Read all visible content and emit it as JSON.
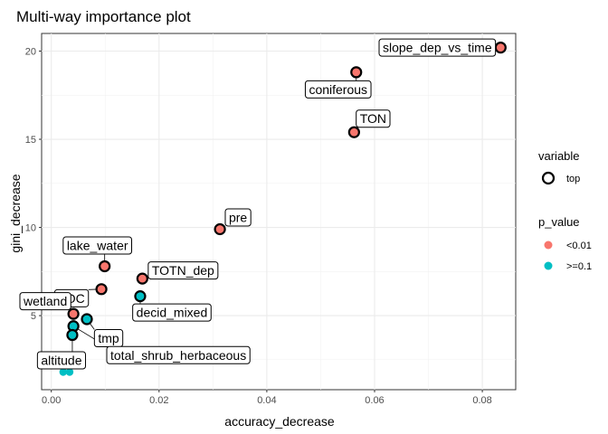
{
  "chart_data": {
    "type": "scatter",
    "title": "Multi-way importance plot",
    "xlabel": "accuracy_decrease",
    "ylabel": "gini_decrease",
    "xlim": [
      -0.0018,
      0.0862
    ],
    "ylim": [
      0.8,
      21.0
    ],
    "x_ticks": [
      "0.00",
      "0.02",
      "0.04",
      "0.06",
      "0.08"
    ],
    "x_tick_values": [
      0.0,
      0.02,
      0.04,
      0.06,
      0.08
    ],
    "y_ticks": [
      "5",
      "10",
      "15",
      "20"
    ],
    "y_tick_values": [
      5,
      10,
      15,
      20
    ],
    "grid": true,
    "legend_position": "right",
    "colors": {
      "lt001": "#F8766D",
      "ge01": "#00BFC4"
    },
    "points": [
      {
        "label": "slope_dep_vs_time",
        "x": 0.0834,
        "y": 20.2,
        "p": "<0.01",
        "top": true
      },
      {
        "label": "coniferous",
        "x": 0.0566,
        "y": 18.8,
        "p": "<0.01",
        "top": true
      },
      {
        "label": "TON",
        "x": 0.0562,
        "y": 15.4,
        "p": "<0.01",
        "top": true
      },
      {
        "label": "pre",
        "x": 0.0313,
        "y": 9.9,
        "p": "<0.01",
        "top": true
      },
      {
        "label": "lake_water",
        "x": 0.0099,
        "y": 7.8,
        "p": "<0.01",
        "top": true
      },
      {
        "label": "TOTN_dep",
        "x": 0.0169,
        "y": 7.1,
        "p": "<0.01",
        "top": true
      },
      {
        "label": "TOC",
        "x": 0.0093,
        "y": 6.5,
        "p": "<0.01",
        "top": true
      },
      {
        "label": "decid_mixed",
        "x": 0.0165,
        "y": 6.1,
        "p": ">=0.1",
        "top": true
      },
      {
        "label": "wetland",
        "x": 0.0041,
        "y": 5.1,
        "p": "<0.01",
        "top": true
      },
      {
        "label": "tmp",
        "x": 0.0066,
        "y": 4.8,
        "p": ">=0.1",
        "top": true
      },
      {
        "label": "total_shrub_herbaceous",
        "x": 0.0041,
        "y": 4.4,
        "p": ">=0.1",
        "top": true
      },
      {
        "label": "altitude",
        "x": 0.0039,
        "y": 3.9,
        "p": ">=0.1",
        "top": true
      },
      {
        "label": "",
        "x": 0.0022,
        "y": 1.8,
        "p": ">=0.1",
        "top": false
      },
      {
        "label": "",
        "x": 0.0034,
        "y": 1.8,
        "p": ">=0.1",
        "top": false
      }
    ],
    "legend": {
      "variable_title": "variable",
      "variable_entries": [
        "top"
      ],
      "p_title": "p_value",
      "p_entries": [
        "<0.01",
        ">=0.1"
      ]
    }
  }
}
